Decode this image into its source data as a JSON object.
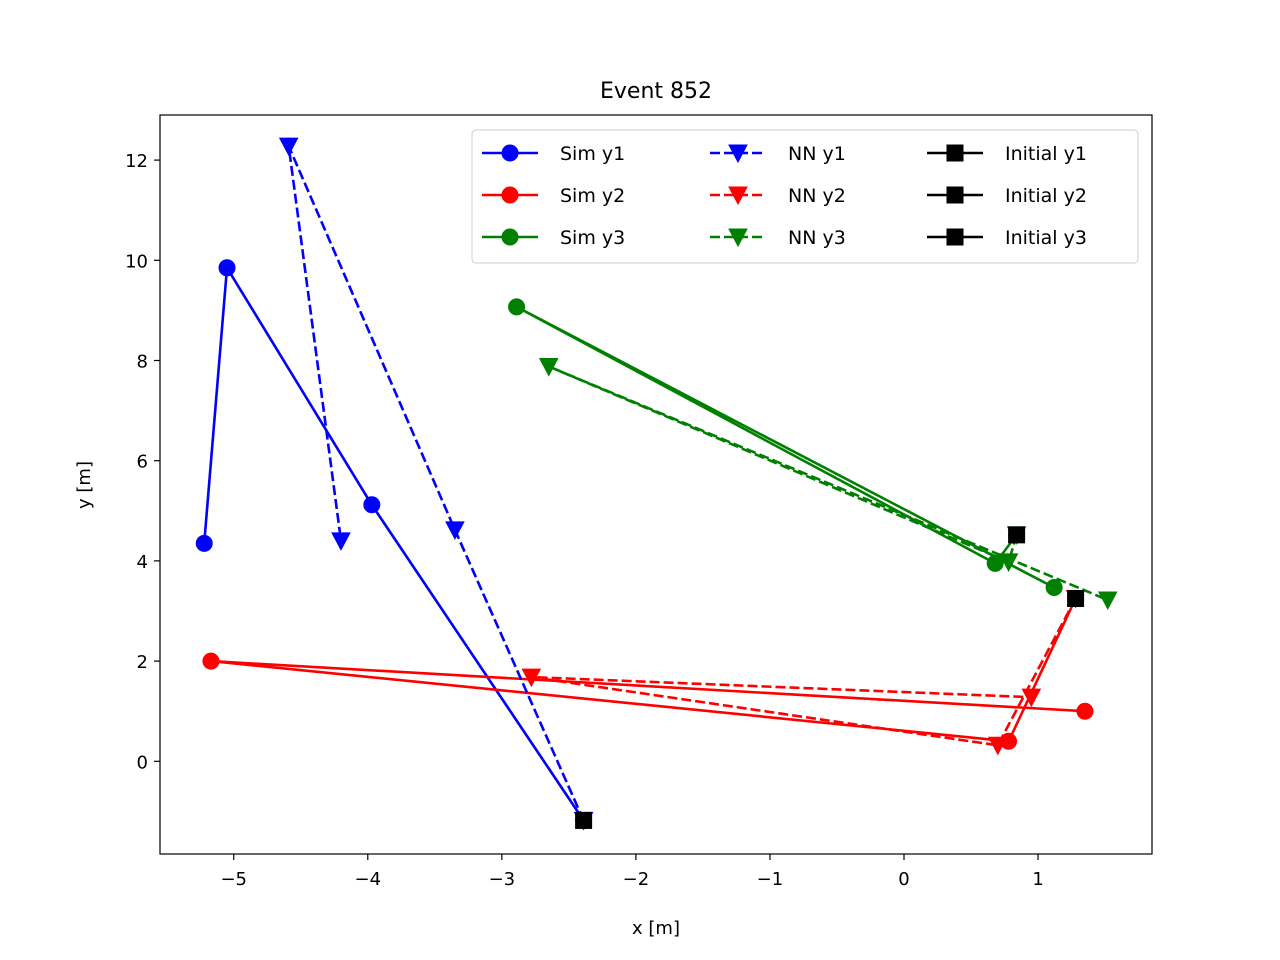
{
  "chart_data": {
    "type": "line",
    "title": "Event 852",
    "xlabel": "x [m]",
    "ylabel": "y [m]",
    "xlim": [
      -5.55,
      1.85
    ],
    "ylim": [
      -1.85,
      12.9
    ],
    "xticks": [
      -5,
      -4,
      -3,
      -2,
      -1,
      0,
      1
    ],
    "xtick_labels": [
      "−5",
      "−4",
      "−3",
      "−2",
      "−1",
      "0",
      "1"
    ],
    "yticks": [
      0,
      2,
      4,
      6,
      8,
      10,
      12
    ],
    "ytick_labels": [
      "0",
      "2",
      "4",
      "6",
      "8",
      "10",
      "12"
    ],
    "grid": false,
    "legend_location": "top-right",
    "legend_columns": 3,
    "series": [
      {
        "name": "Sim y1",
        "color": "#0000ff",
        "linestyle": "solid",
        "marker": "circle",
        "points": [
          [
            -2.39,
            -1.18
          ],
          [
            -3.97,
            5.12
          ],
          [
            -5.05,
            9.85
          ],
          [
            -5.22,
            4.35
          ]
        ]
      },
      {
        "name": "Sim y2",
        "color": "#ff0000",
        "linestyle": "solid",
        "marker": "circle",
        "points": [
          [
            1.28,
            3.25
          ],
          [
            0.78,
            0.4
          ],
          [
            -5.17,
            2.0
          ],
          [
            1.35,
            1.0
          ]
        ]
      },
      {
        "name": "Sim y3",
        "color": "#008000",
        "linestyle": "solid",
        "marker": "circle",
        "points": [
          [
            0.84,
            4.52
          ],
          [
            0.68,
            3.95
          ],
          [
            -2.89,
            9.07
          ],
          [
            1.12,
            3.47
          ]
        ]
      },
      {
        "name": "NN y1",
        "color": "#0000ff",
        "linestyle": "dashed",
        "marker": "triangle-down",
        "points": [
          [
            -2.39,
            -1.18
          ],
          [
            -3.35,
            4.62
          ],
          [
            -4.59,
            12.28
          ],
          [
            -4.2,
            4.4
          ]
        ]
      },
      {
        "name": "NN y2",
        "color": "#ff0000",
        "linestyle": "dashed",
        "marker": "triangle-down",
        "points": [
          [
            1.28,
            3.25
          ],
          [
            0.7,
            0.32
          ],
          [
            -2.78,
            1.68
          ],
          [
            0.95,
            1.28
          ]
        ]
      },
      {
        "name": "NN y3",
        "color": "#008000",
        "linestyle": "dashed",
        "marker": "triangle-down",
        "points": [
          [
            0.84,
            4.52
          ],
          [
            0.78,
            3.98
          ],
          [
            -2.65,
            7.88
          ],
          [
            1.52,
            3.22
          ]
        ]
      },
      {
        "name": "Initial y1",
        "color": "#000000",
        "linestyle": "solid",
        "marker": "square",
        "points": [
          [
            -2.39,
            -1.18
          ]
        ]
      },
      {
        "name": "Initial y2",
        "color": "#000000",
        "linestyle": "solid",
        "marker": "square",
        "points": [
          [
            1.28,
            3.25
          ]
        ]
      },
      {
        "name": "Initial y3",
        "color": "#000000",
        "linestyle": "solid",
        "marker": "square",
        "points": [
          [
            0.84,
            4.52
          ]
        ]
      }
    ]
  }
}
